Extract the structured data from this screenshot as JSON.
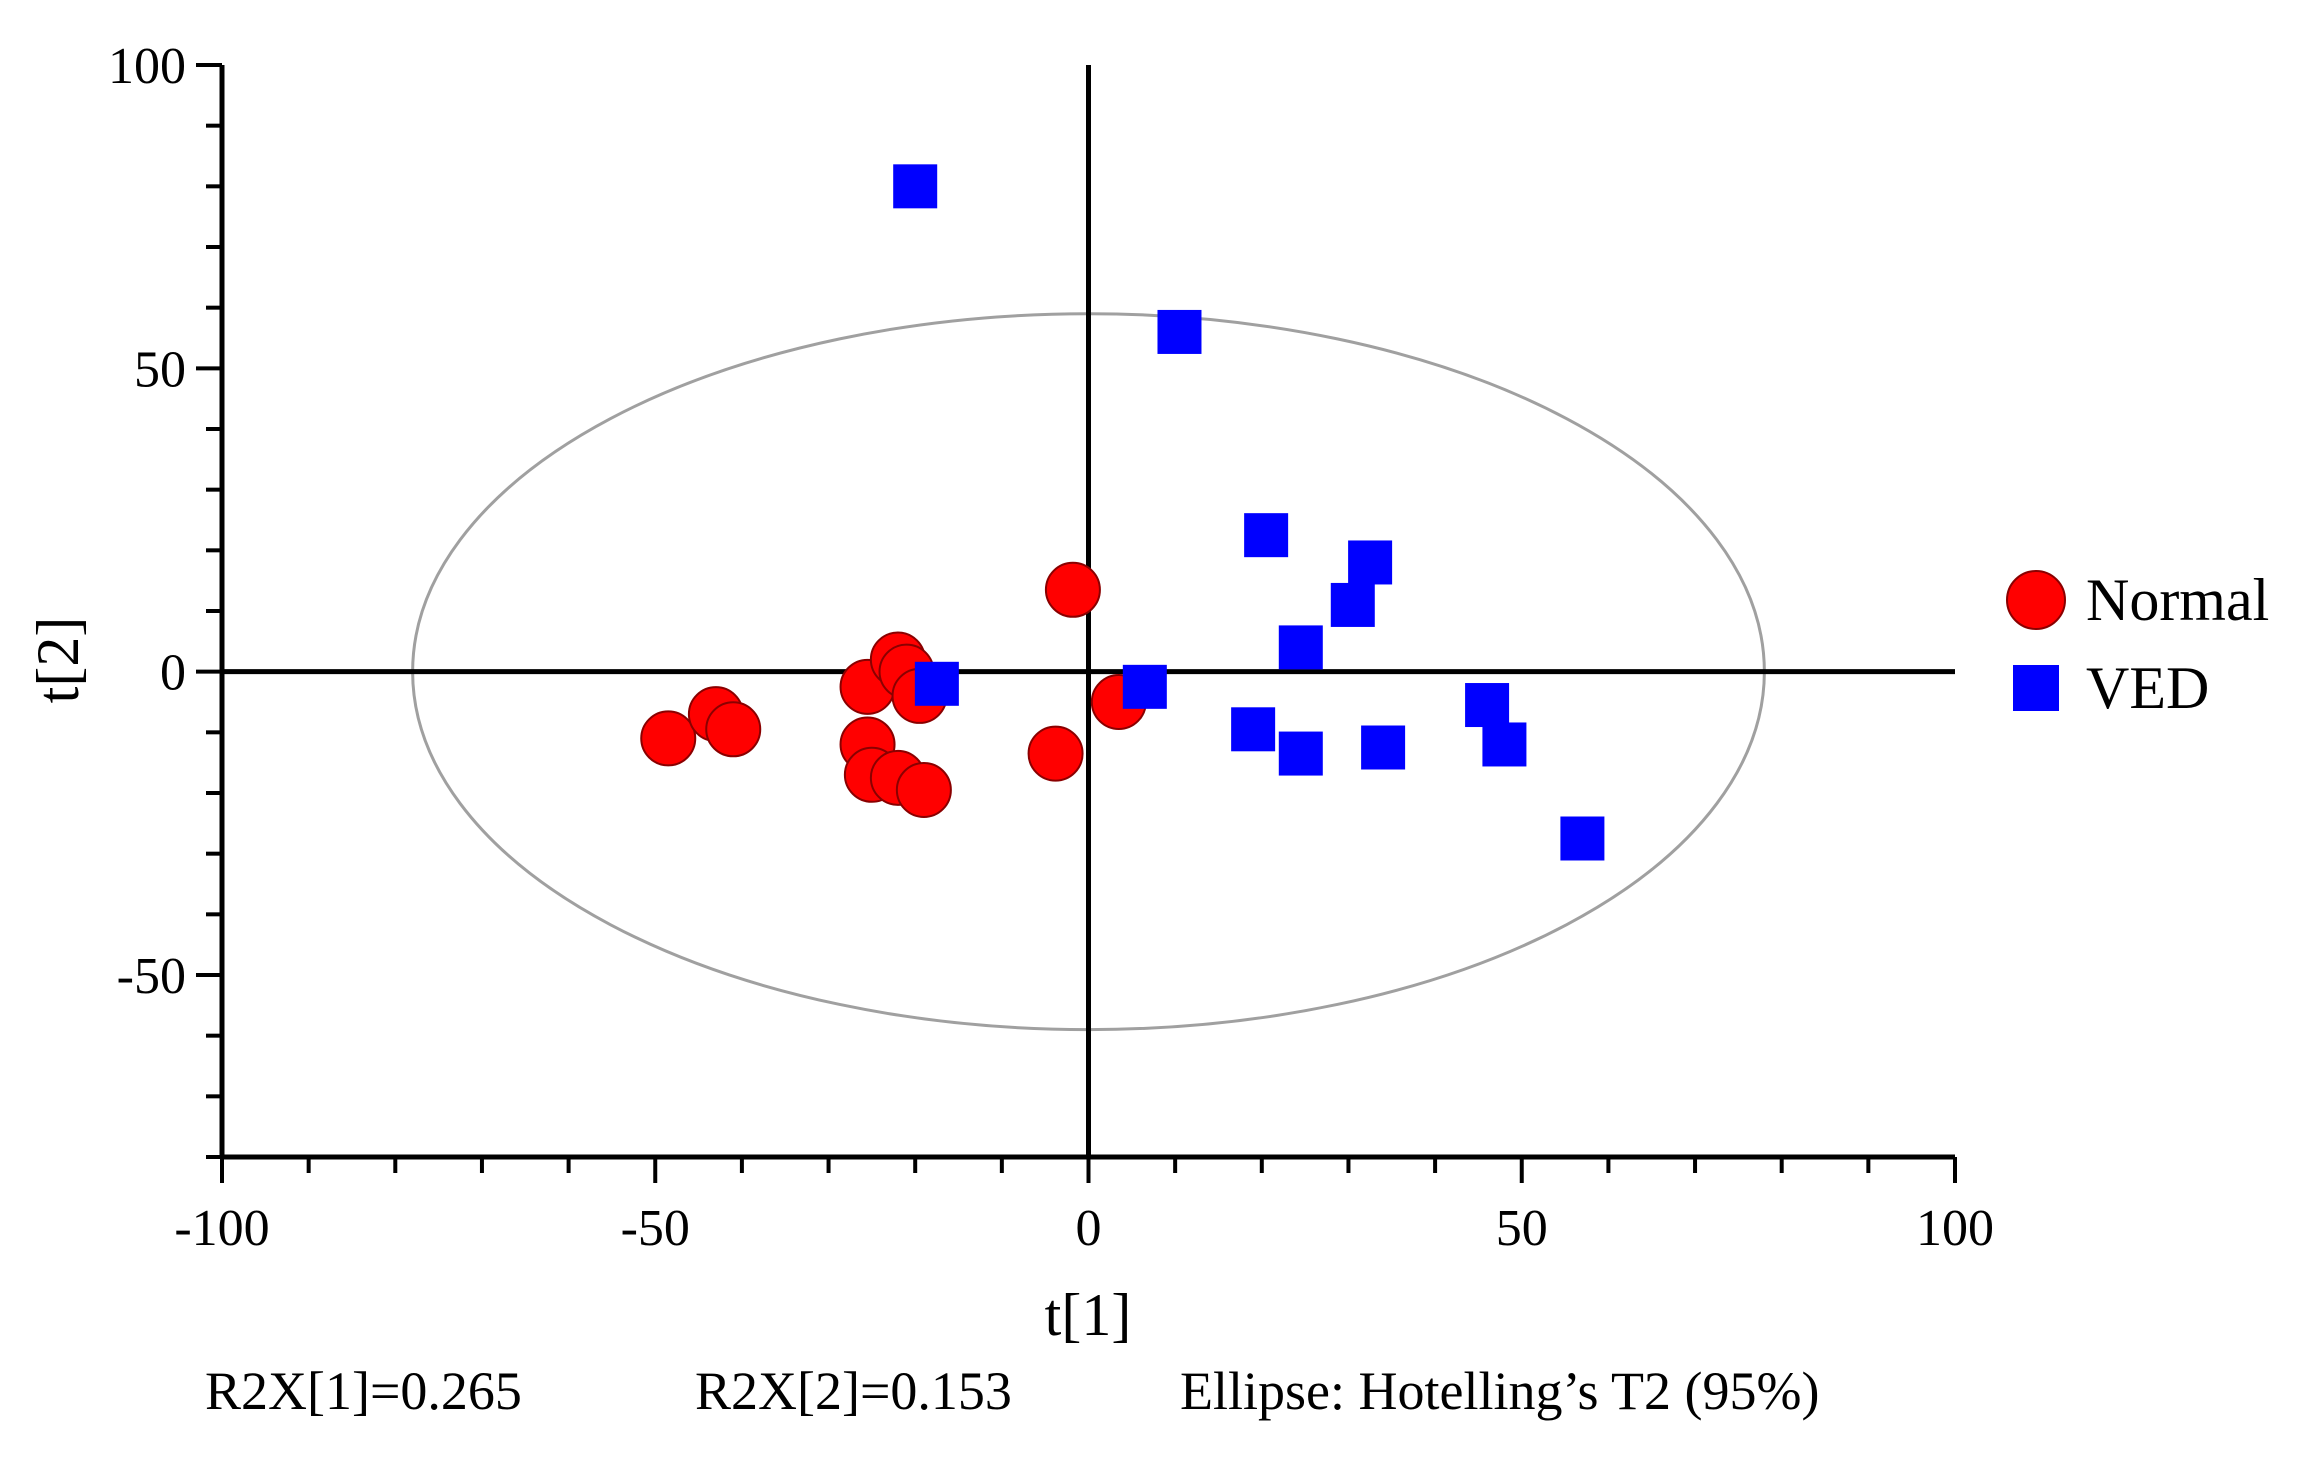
{
  "chart_data": {
    "type": "scatter",
    "title": "",
    "xlabel": "t[1]",
    "ylabel": "t[2]",
    "xlim": [
      -100,
      100
    ],
    "ylim": [
      -80,
      100
    ],
    "x_ticks": [
      "-100",
      "-50",
      "0",
      "50",
      "100"
    ],
    "y_ticks": [
      "100",
      "50",
      "0",
      "-50"
    ],
    "grid": false,
    "legend_position": "right",
    "ellipse": {
      "cx": 0,
      "cy": 0,
      "rx": 78,
      "ry": 59,
      "color": "#a0a0a0"
    },
    "series": [
      {
        "name": "Normal",
        "marker": "circle",
        "color": "#ff0000",
        "points": [
          {
            "x": -48.5,
            "y": -11
          },
          {
            "x": -43,
            "y": -7
          },
          {
            "x": -41,
            "y": -9.5
          },
          {
            "x": -25.5,
            "y": -2.5
          },
          {
            "x": -22,
            "y": 2
          },
          {
            "x": -21,
            "y": 0
          },
          {
            "x": -19.5,
            "y": -4
          },
          {
            "x": -25.5,
            "y": -12
          },
          {
            "x": -25,
            "y": -17
          },
          {
            "x": -22,
            "y": -17.5
          },
          {
            "x": -19,
            "y": -19.5
          },
          {
            "x": -1.8,
            "y": 13.5
          },
          {
            "x": -3.8,
            "y": -13.5
          },
          {
            "x": 3.5,
            "y": -5
          }
        ]
      },
      {
        "name": "VED",
        "marker": "square",
        "color": "#0000ff",
        "points": [
          {
            "x": -20,
            "y": 80
          },
          {
            "x": 10.5,
            "y": 56
          },
          {
            "x": -17.5,
            "y": -2
          },
          {
            "x": 6.5,
            "y": -2.5
          },
          {
            "x": 20.5,
            "y": 22.5
          },
          {
            "x": 32.5,
            "y": 18
          },
          {
            "x": 30.5,
            "y": 11
          },
          {
            "x": 24.5,
            "y": 4
          },
          {
            "x": 19,
            "y": -9.5
          },
          {
            "x": 24.5,
            "y": -13.5
          },
          {
            "x": 34,
            "y": -12.5
          },
          {
            "x": 46,
            "y": -5.5
          },
          {
            "x": 48,
            "y": -12
          },
          {
            "x": 57,
            "y": -27.5
          }
        ]
      }
    ]
  },
  "footer": {
    "r2x1": "R2X[1]=0.265",
    "r2x2": "R2X[2]=0.153",
    "ellipse_note": "Ellipse: Hotelling’s T2 (95%)"
  }
}
